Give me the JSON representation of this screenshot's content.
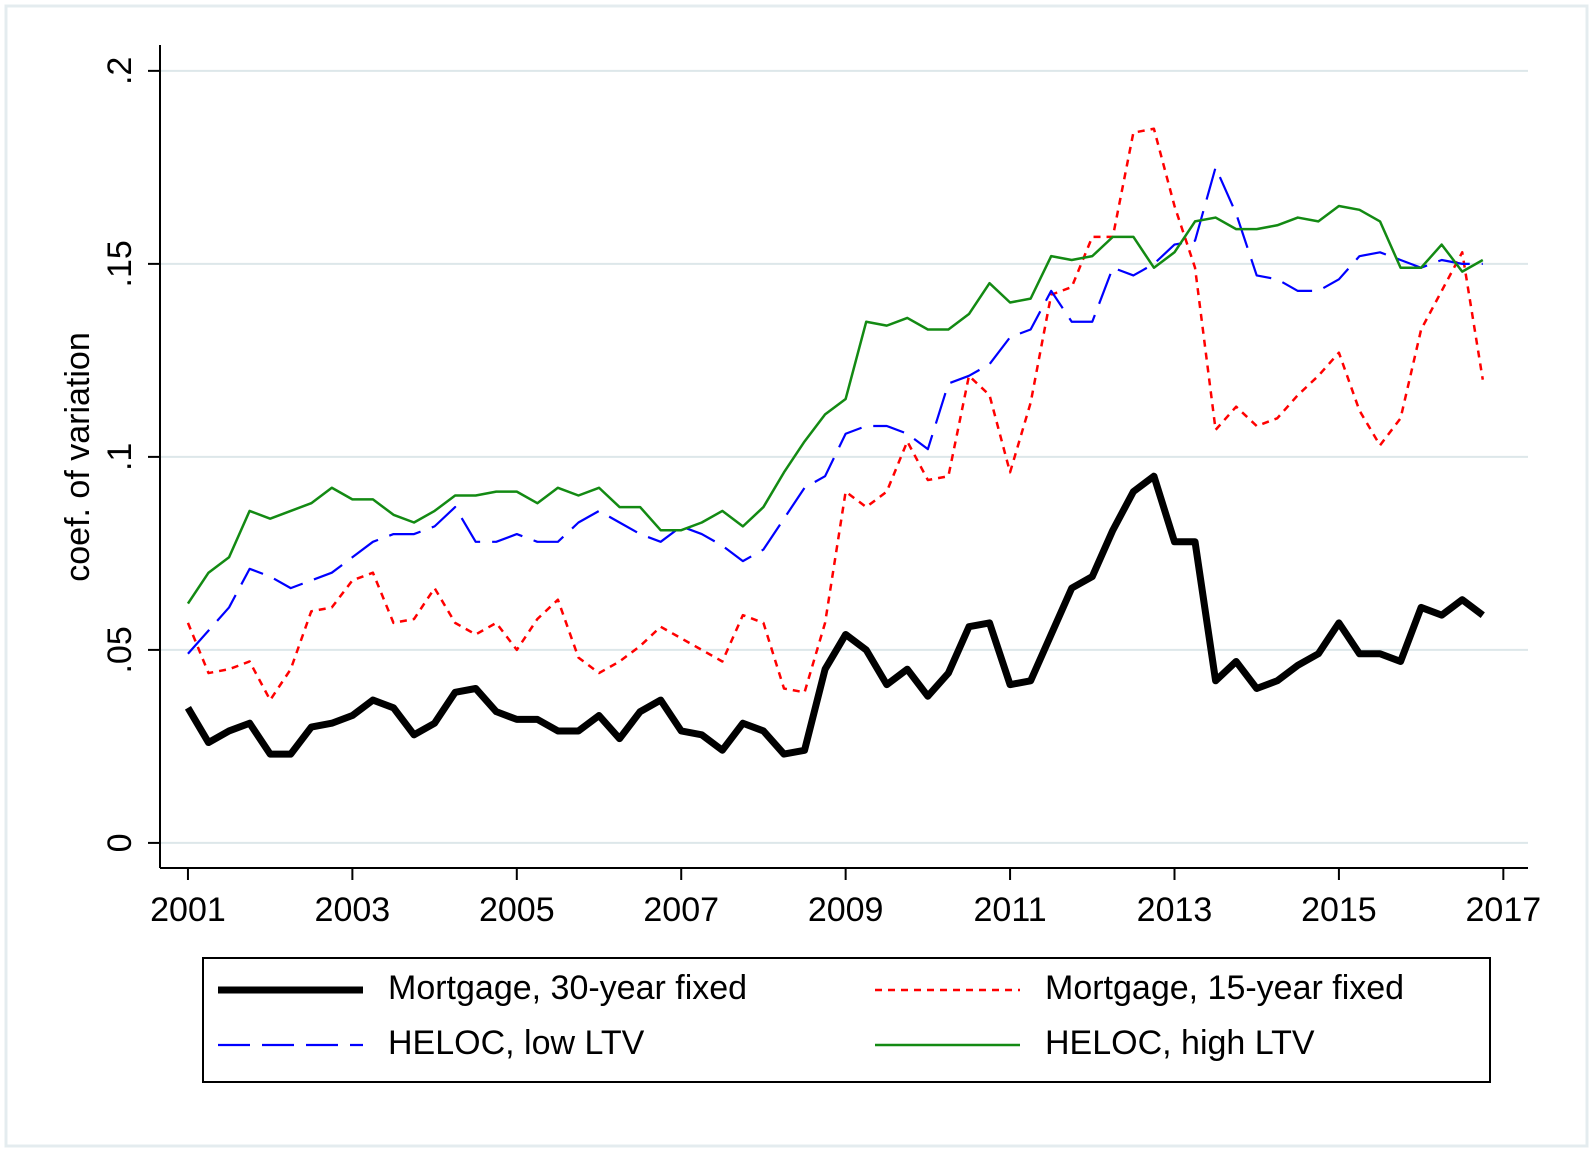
{
  "chart_data": {
    "type": "line",
    "y_label": "coef. of variation",
    "x": [
      2001,
      2001.25,
      2001.5,
      2001.75,
      2002,
      2002.25,
      2002.5,
      2002.75,
      2003,
      2003.25,
      2003.5,
      2003.75,
      2004,
      2004.25,
      2004.5,
      2004.75,
      2005,
      2005.25,
      2005.5,
      2005.75,
      2006,
      2006.25,
      2006.5,
      2006.75,
      2007,
      2007.25,
      2007.5,
      2007.75,
      2008,
      2008.25,
      2008.5,
      2008.75,
      2009,
      2009.25,
      2009.5,
      2009.75,
      2010,
      2010.25,
      2010.5,
      2010.75,
      2011,
      2011.25,
      2011.5,
      2011.75,
      2012,
      2012.25,
      2012.5,
      2012.75,
      2013,
      2013.25,
      2013.5,
      2013.75,
      2014,
      2014.25,
      2014.5,
      2014.75,
      2015,
      2015.25,
      2015.5,
      2015.75,
      2016,
      2016.25,
      2016.5,
      2016.75
    ],
    "series": [
      {
        "name": "Mortgage, 30-year fixed",
        "color": "#000000",
        "values": [
          0.035,
          0.026,
          0.029,
          0.031,
          0.023,
          0.023,
          0.03,
          0.031,
          0.033,
          0.037,
          0.035,
          0.028,
          0.031,
          0.039,
          0.04,
          0.034,
          0.032,
          0.032,
          0.029,
          0.029,
          0.033,
          0.027,
          0.034,
          0.037,
          0.029,
          0.028,
          0.024,
          0.031,
          0.029,
          0.023,
          0.024,
          0.045,
          0.054,
          0.05,
          0.041,
          0.045,
          0.038,
          0.044,
          0.056,
          0.057,
          0.041,
          0.042,
          0.054,
          0.066,
          0.069,
          0.081,
          0.091,
          0.095,
          0.078,
          0.078,
          0.042,
          0.047,
          0.04,
          0.042,
          0.046,
          0.049,
          0.057,
          0.049,
          0.049,
          0.047,
          0.061,
          0.059,
          0.063,
          0.059
        ]
      },
      {
        "name": "Mortgage, 15-year fixed",
        "color": "#ff0000",
        "values": [
          0.057,
          0.044,
          0.045,
          0.047,
          0.037,
          0.045,
          0.06,
          0.061,
          0.068,
          0.07,
          0.057,
          0.058,
          0.066,
          0.057,
          0.054,
          0.057,
          0.05,
          0.058,
          0.063,
          0.048,
          0.044,
          0.047,
          0.051,
          0.056,
          0.053,
          0.05,
          0.047,
          0.059,
          0.057,
          0.04,
          0.039,
          0.057,
          0.091,
          0.087,
          0.091,
          0.104,
          0.094,
          0.095,
          0.121,
          0.116,
          0.096,
          0.114,
          0.142,
          0.144,
          0.157,
          0.157,
          0.184,
          0.185,
          0.165,
          0.149,
          0.107,
          0.113,
          0.108,
          0.11,
          0.116,
          0.121,
          0.127,
          0.112,
          0.103,
          0.11,
          0.133,
          0.143,
          0.153,
          0.12
        ]
      },
      {
        "name": "HELOC, low LTV",
        "color": "#0000ff",
        "values": [
          0.049,
          0.055,
          0.061,
          0.071,
          0.069,
          0.066,
          0.068,
          0.07,
          0.074,
          0.078,
          0.08,
          0.08,
          0.082,
          0.087,
          0.078,
          0.078,
          0.08,
          0.078,
          0.078,
          0.083,
          0.086,
          0.083,
          0.08,
          0.078,
          0.082,
          0.08,
          0.077,
          0.073,
          0.076,
          0.084,
          0.092,
          0.095,
          0.106,
          0.108,
          0.108,
          0.106,
          0.102,
          0.119,
          0.121,
          0.124,
          0.131,
          0.133,
          0.143,
          0.135,
          0.135,
          0.149,
          0.147,
          0.15,
          0.155,
          0.156,
          0.175,
          0.163,
          0.147,
          0.146,
          0.143,
          0.143,
          0.146,
          0.152,
          0.153,
          0.151,
          0.149,
          0.151,
          0.15,
          0.15
        ]
      },
      {
        "name": "HELOC, high LTV",
        "color": "#138a13",
        "values": [
          0.062,
          0.07,
          0.074,
          0.086,
          0.084,
          0.086,
          0.088,
          0.092,
          0.089,
          0.089,
          0.085,
          0.083,
          0.086,
          0.09,
          0.09,
          0.091,
          0.091,
          0.088,
          0.092,
          0.09,
          0.092,
          0.087,
          0.087,
          0.081,
          0.081,
          0.083,
          0.086,
          0.082,
          0.087,
          0.096,
          0.104,
          0.111,
          0.115,
          0.135,
          0.134,
          0.136,
          0.133,
          0.133,
          0.137,
          0.145,
          0.14,
          0.141,
          0.152,
          0.151,
          0.152,
          0.157,
          0.157,
          0.149,
          0.153,
          0.161,
          0.162,
          0.159,
          0.159,
          0.16,
          0.162,
          0.161,
          0.165,
          0.164,
          0.161,
          0.149,
          0.149,
          0.155,
          0.148,
          0.151
        ]
      }
    ],
    "xlim": [
      2000.66,
      2017.3
    ],
    "xticks": [
      2001,
      2003,
      2005,
      2007,
      2009,
      2011,
      2013,
      2015,
      2017
    ],
    "ylim": [
      -0.0065,
      0.2067
    ],
    "yticks": [
      0,
      {
        "value": 0.05,
        "label": ".05"
      },
      {
        "value": 0.1,
        "label": ".1"
      },
      {
        "value": 0.15,
        "label": ".15"
      },
      {
        "value": 0.2,
        "label": ".2"
      }
    ],
    "grid": true
  }
}
